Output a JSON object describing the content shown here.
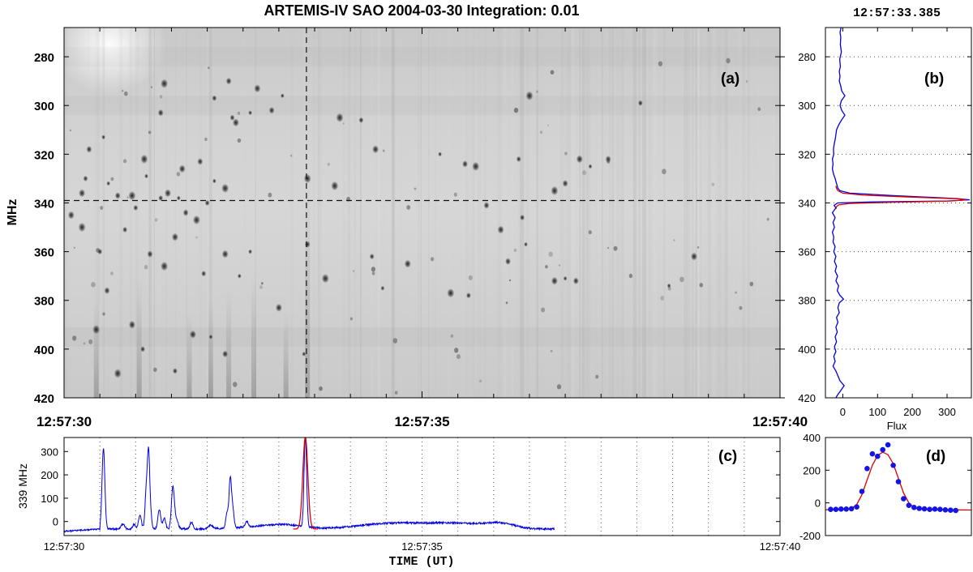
{
  "figure": {
    "title": "ARTEMIS-IV  SAO 2004-03-30   Integration: 0.01",
    "timestamp": "12:57:33.385"
  },
  "chart_data": [
    {
      "id": "a",
      "panel_label": "(a)",
      "type": "heatmap",
      "title": "",
      "ylabel": "MHz",
      "xlabel": "",
      "ylim": [
        420,
        268
      ],
      "yticks": [
        280,
        300,
        320,
        340,
        360,
        380,
        400,
        420
      ],
      "xtick_labels": [
        "12:57:30",
        "12:57:35",
        "12:57:40"
      ],
      "xlim_s": [
        0,
        10
      ],
      "crosshair": {
        "time_s": 3.385,
        "freq_mhz": 339
      },
      "colormap": "gray (dark = high flux)",
      "spikes": [
        [
          0.55,
          313
        ],
        [
          0.35,
          318
        ],
        [
          1.12,
          322
        ],
        [
          0.3,
          330
        ],
        [
          0.25,
          336
        ],
        [
          0.62,
          332
        ],
        [
          0.75,
          337
        ],
        [
          0.95,
          337
        ],
        [
          1.35,
          338
        ],
        [
          1.45,
          336
        ],
        [
          1.6,
          338
        ],
        [
          1.7,
          344
        ],
        [
          1.85,
          347
        ],
        [
          2.0,
          340
        ],
        [
          1.65,
          326
        ],
        [
          1.15,
          329
        ],
        [
          1.35,
          303
        ],
        [
          1.4,
          291
        ],
        [
          2.35,
          305
        ],
        [
          2.4,
          307
        ],
        [
          2.6,
          303
        ],
        [
          2.9,
          302
        ],
        [
          3.4,
          330
        ],
        [
          2.1,
          297
        ],
        [
          2.7,
          293
        ],
        [
          3.05,
          296
        ],
        [
          2.3,
          290
        ],
        [
          3.85,
          305
        ],
        [
          4.15,
          306
        ],
        [
          4.35,
          318
        ],
        [
          5.25,
          320
        ],
        [
          5.6,
          324
        ],
        [
          5.75,
          325
        ],
        [
          6.35,
          322
        ],
        [
          7.2,
          322
        ],
        [
          7.35,
          325
        ],
        [
          7.0,
          332
        ],
        [
          6.85,
          335
        ],
        [
          6.4,
          346
        ],
        [
          6.1,
          351
        ],
        [
          6.45,
          357
        ],
        [
          6.2,
          364
        ],
        [
          5.4,
          377
        ],
        [
          5.65,
          378
        ],
        [
          6.85,
          372
        ],
        [
          7.0,
          371
        ],
        [
          7.15,
          372
        ],
        [
          0.45,
          392
        ],
        [
          1.1,
          400
        ],
        [
          1.8,
          394
        ],
        [
          2.05,
          395
        ],
        [
          2.25,
          402
        ],
        [
          1.4,
          366
        ],
        [
          1.95,
          369
        ],
        [
          2.25,
          361
        ],
        [
          2.6,
          360
        ],
        [
          3.4,
          357
        ],
        [
          3.65,
          371
        ],
        [
          4.3,
          362
        ],
        [
          4.8,
          365
        ],
        [
          3.35,
          402
        ],
        [
          0.6,
          376
        ],
        [
          0.75,
          410
        ],
        [
          1.55,
          409
        ],
        [
          0.95,
          390
        ],
        [
          2.45,
          370
        ],
        [
          1.2,
          361
        ],
        [
          3.78,
          333
        ],
        [
          0.85,
          351
        ],
        [
          1.55,
          354
        ],
        [
          2.1,
          331
        ],
        [
          1.9,
          323
        ],
        [
          2.25,
          334
        ],
        [
          0.5,
          360
        ],
        [
          3.0,
          383
        ],
        [
          4.45,
          375
        ],
        [
          5.9,
          341
        ],
        [
          6.5,
          296
        ],
        [
          8.05,
          299
        ],
        [
          8.8,
          362
        ],
        [
          8.45,
          374
        ],
        [
          7.6,
          322
        ],
        [
          0.25,
          350
        ],
        [
          1.0,
          342
        ],
        [
          0.1,
          345
        ]
      ],
      "bands": [
        {
          "t": 0.45,
          "f0": 380,
          "f1": 420
        },
        {
          "t": 1.05,
          "f0": 370,
          "f1": 420
        },
        {
          "t": 1.75,
          "f0": 385,
          "f1": 420
        },
        {
          "t": 2.05,
          "f0": 380,
          "f1": 420
        },
        {
          "t": 2.3,
          "f0": 375,
          "f1": 420
        },
        {
          "t": 2.65,
          "f0": 370,
          "f1": 420
        },
        {
          "t": 3.1,
          "f0": 385,
          "f1": 420
        },
        {
          "t": 3.4,
          "f0": 330,
          "f1": 420
        }
      ]
    },
    {
      "id": "b",
      "panel_label": "(b)",
      "type": "line",
      "xlabel": "Flux",
      "ylabel": "",
      "xlim": [
        -50,
        370
      ],
      "ylim": [
        420,
        268
      ],
      "xticks": [
        0,
        100,
        200,
        300
      ],
      "yticks": [
        280,
        300,
        320,
        340,
        360,
        380,
        400,
        420
      ],
      "series": [
        {
          "name": "",
          "color": "#0000dd",
          "points": [
            [
              -5,
              268
            ],
            [
              -8,
              270
            ],
            [
              -6,
              272
            ],
            [
              -7,
              275
            ],
            [
              -4,
              278
            ],
            [
              -9,
              281
            ],
            [
              -7,
              284
            ],
            [
              -10,
              286
            ],
            [
              -8,
              288
            ],
            [
              -10,
              290
            ],
            [
              -6,
              292
            ],
            [
              -3,
              294
            ],
            [
              6,
              296
            ],
            [
              -4,
              298
            ],
            [
              -8,
              300
            ],
            [
              -3,
              302
            ],
            [
              6,
              304
            ],
            [
              -4,
              306
            ],
            [
              -12,
              308
            ],
            [
              -18,
              310
            ],
            [
              -20,
              312
            ],
            [
              -22,
              314
            ],
            [
              -25,
              316
            ],
            [
              -27,
              318
            ],
            [
              -26,
              320
            ],
            [
              -30,
              322
            ],
            [
              -28,
              324
            ],
            [
              -30,
              326
            ],
            [
              -27,
              328
            ],
            [
              -22,
              330
            ],
            [
              -18,
              332
            ],
            [
              -14,
              334
            ],
            [
              -8,
              335
            ],
            [
              20,
              336
            ],
            [
              150,
              337
            ],
            [
              330,
              338.2
            ],
            [
              365,
              338.7
            ],
            [
              300,
              339.2
            ],
            [
              80,
              339.6
            ],
            [
              -15,
              340
            ],
            [
              -25,
              341
            ],
            [
              -20,
              342
            ],
            [
              -30,
              344
            ],
            [
              -22,
              346
            ],
            [
              -28,
              348
            ],
            [
              -24,
              350
            ],
            [
              -30,
              352
            ],
            [
              -26,
              354
            ],
            [
              -28,
              356
            ],
            [
              -22,
              358
            ],
            [
              -26,
              360
            ],
            [
              -20,
              362
            ],
            [
              -24,
              364
            ],
            [
              -18,
              366
            ],
            [
              -22,
              368
            ],
            [
              -15,
              370
            ],
            [
              -20,
              372
            ],
            [
              -12,
              374
            ],
            [
              -16,
              376
            ],
            [
              -8,
              378
            ],
            [
              2,
              379.5
            ],
            [
              -10,
              381
            ],
            [
              -14,
              383
            ],
            [
              -10,
              385
            ],
            [
              -18,
              387
            ],
            [
              -14,
              389
            ],
            [
              -20,
              391
            ],
            [
              -16,
              393
            ],
            [
              -22,
              395
            ],
            [
              -18,
              397
            ],
            [
              -24,
              399
            ],
            [
              -20,
              401
            ],
            [
              -26,
              403
            ],
            [
              -22,
              405
            ],
            [
              -28,
              407
            ],
            [
              -20,
              409
            ],
            [
              -14,
              411
            ],
            [
              -8,
              413
            ],
            [
              4,
              415
            ],
            [
              -6,
              417
            ],
            [
              -16,
              419
            ],
            [
              -20,
              420
            ]
          ]
        },
        {
          "name": "",
          "color": "#dd0000",
          "points": [
            [
              -20,
              333
            ],
            [
              -18,
              334
            ],
            [
              -14,
              335
            ],
            [
              0,
              336
            ],
            [
              60,
              336.8
            ],
            [
              200,
              337.6
            ],
            [
              330,
              338.3
            ],
            [
              355,
              338.7
            ],
            [
              310,
              339.2
            ],
            [
              150,
              339.7
            ],
            [
              20,
              340.2
            ],
            [
              -12,
              340.8
            ],
            [
              -18,
              341.5
            ],
            [
              -20,
              342.5
            ]
          ]
        }
      ]
    },
    {
      "id": "c",
      "panel_label": "(c)",
      "type": "line",
      "ylabel": "339 MHz",
      "xlabel": "TIME (UT)",
      "xlim_s": [
        0,
        10
      ],
      "ylim": [
        -60,
        360
      ],
      "yticks": [
        0,
        100,
        200,
        300
      ],
      "xtick_labels": [
        "12:57:30",
        "12:57:35",
        "12:57:40"
      ],
      "baseline": -32,
      "peaks": [
        [
          0.55,
          345,
          0.02
        ],
        [
          0.82,
          22,
          0.025
        ],
        [
          0.98,
          20,
          0.02
        ],
        [
          1.06,
          60,
          0.02
        ],
        [
          1.15,
          175,
          0.018
        ],
        [
          1.18,
          250,
          0.015
        ],
        [
          1.2,
          90,
          0.02
        ],
        [
          1.33,
          85,
          0.02
        ],
        [
          1.4,
          45,
          0.02
        ],
        [
          1.52,
          178,
          0.02
        ],
        [
          1.57,
          40,
          0.025
        ],
        [
          1.78,
          30,
          0.02
        ],
        [
          2.05,
          15,
          0.03
        ],
        [
          2.28,
          70,
          0.02
        ],
        [
          2.32,
          180,
          0.015
        ],
        [
          2.35,
          100,
          0.02
        ],
        [
          2.55,
          25,
          0.02
        ],
        [
          3.37,
          385,
          0.018
        ]
      ],
      "bumps": [
        [
          2.8,
          10,
          0.35
        ],
        [
          3.1,
          12,
          0.25
        ],
        [
          4.4,
          14,
          0.4
        ],
        [
          5.0,
          18,
          0.5
        ],
        [
          5.6,
          15,
          0.35
        ],
        [
          6.1,
          20,
          0.2
        ]
      ],
      "signal_end_s": 6.85,
      "fit": {
        "color": "#dd0000",
        "center_s": 3.37,
        "amplitude": 395,
        "sigma_s": 0.035,
        "baseline": -32,
        "range_s": [
          3.2,
          3.55
        ]
      }
    },
    {
      "id": "d",
      "panel_label": "(d)",
      "type": "scatter",
      "xlabel": "",
      "ylabel": "",
      "xlim": [
        0,
        28
      ],
      "ylim": [
        -200,
        400
      ],
      "yticks": [
        -200,
        0,
        200,
        400
      ],
      "points": [
        [
          1,
          -40
        ],
        [
          2,
          -40
        ],
        [
          3,
          -38
        ],
        [
          4,
          -38
        ],
        [
          5,
          -36
        ],
        [
          6,
          -25
        ],
        [
          7,
          70
        ],
        [
          8,
          210
        ],
        [
          9,
          300
        ],
        [
          10,
          285
        ],
        [
          11,
          325
        ],
        [
          12,
          355
        ],
        [
          13,
          230
        ],
        [
          14,
          130
        ],
        [
          15,
          25
        ],
        [
          16,
          -15
        ],
        [
          17,
          -28
        ],
        [
          18,
          -34
        ],
        [
          19,
          -37
        ],
        [
          20,
          -40
        ],
        [
          21,
          -38
        ],
        [
          22,
          -40
        ],
        [
          23,
          -43
        ],
        [
          24,
          -45
        ],
        [
          25,
          -47
        ]
      ],
      "fit_color": "#dd0000",
      "fit": [
        [
          0,
          -42
        ],
        [
          2,
          -42
        ],
        [
          4,
          -40
        ],
        [
          5,
          -35
        ],
        [
          6,
          -10
        ],
        [
          7,
          50
        ],
        [
          8,
          140
        ],
        [
          9,
          230
        ],
        [
          10,
          290
        ],
        [
          11,
          310
        ],
        [
          12,
          295
        ],
        [
          13,
          240
        ],
        [
          14,
          150
        ],
        [
          15,
          60
        ],
        [
          16,
          0
        ],
        [
          17,
          -28
        ],
        [
          18,
          -38
        ],
        [
          20,
          -41
        ],
        [
          24,
          -43
        ],
        [
          28,
          -44
        ]
      ]
    }
  ]
}
